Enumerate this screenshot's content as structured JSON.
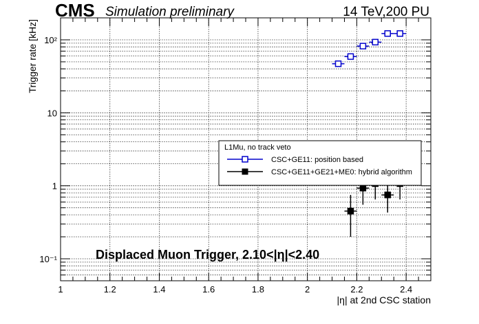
{
  "header": {
    "experiment": "CMS",
    "status": "Simulation preliminary",
    "conditions": "14 TeV,200 PU"
  },
  "chart_data": {
    "type": "scatter",
    "xlabel": "|η| at 2nd CSC station",
    "ylabel": "Trigger rate [kHz]",
    "xlim": [
      1.0,
      2.5
    ],
    "ylim": [
      0.05,
      200
    ],
    "yscale": "log",
    "grid": true,
    "x_ticks": [
      1,
      1.2,
      1.4,
      1.6,
      1.8,
      2,
      2.2,
      2.4
    ],
    "x_tick_labels": [
      "1",
      "1.2",
      "1.4",
      "1.6",
      "1.8",
      "2",
      "2.2",
      "2.4"
    ],
    "y_ticks": [
      0.1,
      1,
      10,
      100
    ],
    "y_tick_labels": [
      "10⁻¹",
      "1",
      "10",
      "10²"
    ],
    "annotation": "Displaced Muon Trigger, 2.10<|η|<2.40",
    "legend": {
      "title": "L1Mu, no track veto",
      "placement": "center-right"
    },
    "series": [
      {
        "name": "CSC+GE11: position based",
        "color": "#0000cc",
        "marker": "open-square",
        "points": [
          {
            "x": 2.125,
            "y": 47,
            "xerr": 0.025,
            "ylo": 44,
            "yhi": 50
          },
          {
            "x": 2.175,
            "y": 59,
            "xerr": 0.025,
            "ylo": 55,
            "yhi": 63
          },
          {
            "x": 2.225,
            "y": 82,
            "xerr": 0.025,
            "ylo": 77,
            "yhi": 87
          },
          {
            "x": 2.275,
            "y": 93,
            "xerr": 0.025,
            "ylo": 88,
            "yhi": 98
          },
          {
            "x": 2.325,
            "y": 122,
            "xerr": 0.025,
            "ylo": 116,
            "yhi": 128
          },
          {
            "x": 2.375,
            "y": 122,
            "xerr": 0.025,
            "ylo": 116,
            "yhi": 128
          }
        ]
      },
      {
        "name": "CSC+GE11+GE21+ME0: hybrid algorithm",
        "color": "#000000",
        "marker": "filled-square",
        "points": [
          {
            "x": 2.175,
            "y": 0.45,
            "xerr": 0.025,
            "ylo": 0.2,
            "yhi": 0.75
          },
          {
            "x": 2.225,
            "y": 0.93,
            "xerr": 0.025,
            "ylo": 0.55,
            "yhi": 1.35
          },
          {
            "x": 2.275,
            "y": 1.07,
            "xerr": 0.025,
            "ylo": 0.65,
            "yhi": 1.5
          },
          {
            "x": 2.325,
            "y": 0.75,
            "xerr": 0.025,
            "ylo": 0.43,
            "yhi": 1.08
          },
          {
            "x": 2.375,
            "y": 1.07,
            "xerr": 0.025,
            "ylo": 0.65,
            "yhi": 1.5
          }
        ]
      }
    ]
  }
}
